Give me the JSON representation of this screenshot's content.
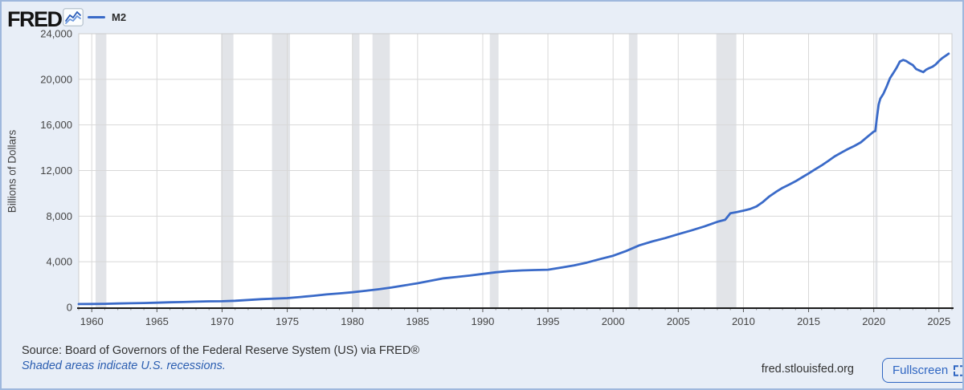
{
  "header": {
    "logo_text": "FRED",
    "legend": {
      "series_label": "M2"
    }
  },
  "chart_data": {
    "type": "line",
    "ylabel": "Billions of Dollars",
    "xlim": [
      1959,
      2026
    ],
    "ylim": [
      0,
      24000
    ],
    "x_tick_years": [
      1960,
      1965,
      1970,
      1975,
      1980,
      1985,
      1990,
      1995,
      2000,
      2005,
      2010,
      2015,
      2020,
      2025
    ],
    "x_tick_labels": [
      "1960",
      "1965",
      "1970",
      "1975",
      "1980",
      "1985",
      "1990",
      "1995",
      "2000",
      "2005",
      "2010",
      "2015",
      "2020",
      "2025"
    ],
    "y_tick_values": [
      0,
      4000,
      8000,
      12000,
      16000,
      20000,
      24000
    ],
    "y_tick_labels": [
      "0",
      "4,000",
      "8,000",
      "12,000",
      "16,000",
      "20,000",
      "24,000"
    ],
    "series": [
      {
        "name": "M2",
        "color": "#3a6ac8",
        "x": [
          1959,
          1960,
          1961,
          1962,
          1963,
          1964,
          1965,
          1966,
          1967,
          1968,
          1969,
          1970,
          1971,
          1972,
          1973,
          1974,
          1975,
          1976,
          1977,
          1978,
          1979,
          1980,
          1981,
          1982,
          1983,
          1984,
          1985,
          1986,
          1987,
          1988,
          1989,
          1990,
          1991,
          1992,
          1993,
          1994,
          1995,
          1996,
          1997,
          1998,
          1999,
          2000,
          2001,
          2002,
          2003,
          2004,
          2005,
          2006,
          2007,
          2008,
          2008.6,
          2009,
          2009.5,
          2010,
          2010.5,
          2011,
          2011.5,
          2012,
          2012.5,
          2013,
          2013.5,
          2014,
          2014.5,
          2015,
          2015.5,
          2016,
          2016.5,
          2017,
          2017.5,
          2018,
          2018.5,
          2019,
          2019.5,
          2020,
          2020.12,
          2020.25,
          2020.38,
          2020.5,
          2020.75,
          2021,
          2021.25,
          2021.5,
          2021.75,
          2022,
          2022.25,
          2022.5,
          2022.75,
          2023,
          2023.25,
          2023.5,
          2023.8,
          2024,
          2024.25,
          2024.5,
          2024.75,
          2025,
          2025.25,
          2025.5,
          2025.75
        ],
        "y": [
          287,
          297,
          312,
          335,
          357,
          381,
          410,
          442,
          463,
          500,
          527,
          533,
          578,
          649,
          718,
          766,
          807,
          907,
          1017,
          1131,
          1226,
          1322,
          1448,
          1581,
          1735,
          1931,
          2110,
          2327,
          2547,
          2668,
          2787,
          2936,
          3074,
          3184,
          3237,
          3272,
          3298,
          3481,
          3676,
          3927,
          4240,
          4528,
          4938,
          5433,
          5779,
          6072,
          6422,
          6744,
          7097,
          7506,
          7680,
          8255,
          8360,
          8478,
          8620,
          8845,
          9250,
          9742,
          10130,
          10477,
          10760,
          11057,
          11400,
          11742,
          12100,
          12450,
          12840,
          13238,
          13560,
          13870,
          14150,
          14461,
          14940,
          15419,
          15460,
          16700,
          17800,
          18300,
          18750,
          19400,
          20100,
          20550,
          21000,
          21550,
          21700,
          21600,
          21400,
          21250,
          20900,
          20780,
          20630,
          20830,
          20980,
          21100,
          21300,
          21600,
          21850,
          22050,
          22250
        ]
      }
    ],
    "recessions": [
      [
        1960.29,
        1961.12
      ],
      [
        1969.92,
        1970.87
      ],
      [
        1973.83,
        1975.21
      ],
      [
        1980.0,
        1980.54
      ],
      [
        1981.54,
        1982.87
      ],
      [
        1990.54,
        1991.21
      ],
      [
        2001.21,
        2001.87
      ],
      [
        2007.92,
        2009.46
      ],
      [
        2020.12,
        2020.29
      ]
    ],
    "colors": {
      "series_line": "#3a6ac8",
      "recession_band": "#e2e4e8",
      "gridline": "#d8d8d8",
      "plot_border": "#cccccc",
      "axis_line": "#1a1a1a",
      "tick_text": "#444444",
      "page_background": "#e8eef7",
      "plot_background": "#ffffff",
      "link_blue": "#2a5db0"
    }
  },
  "footer": {
    "source": "Source: Board of Governors of the Federal Reserve System (US) via FRED®",
    "recession_note": "Shaded areas indicate U.S. recessions.",
    "site": "fred.stlouisfed.org",
    "fullscreen_label": "Fullscreen"
  }
}
